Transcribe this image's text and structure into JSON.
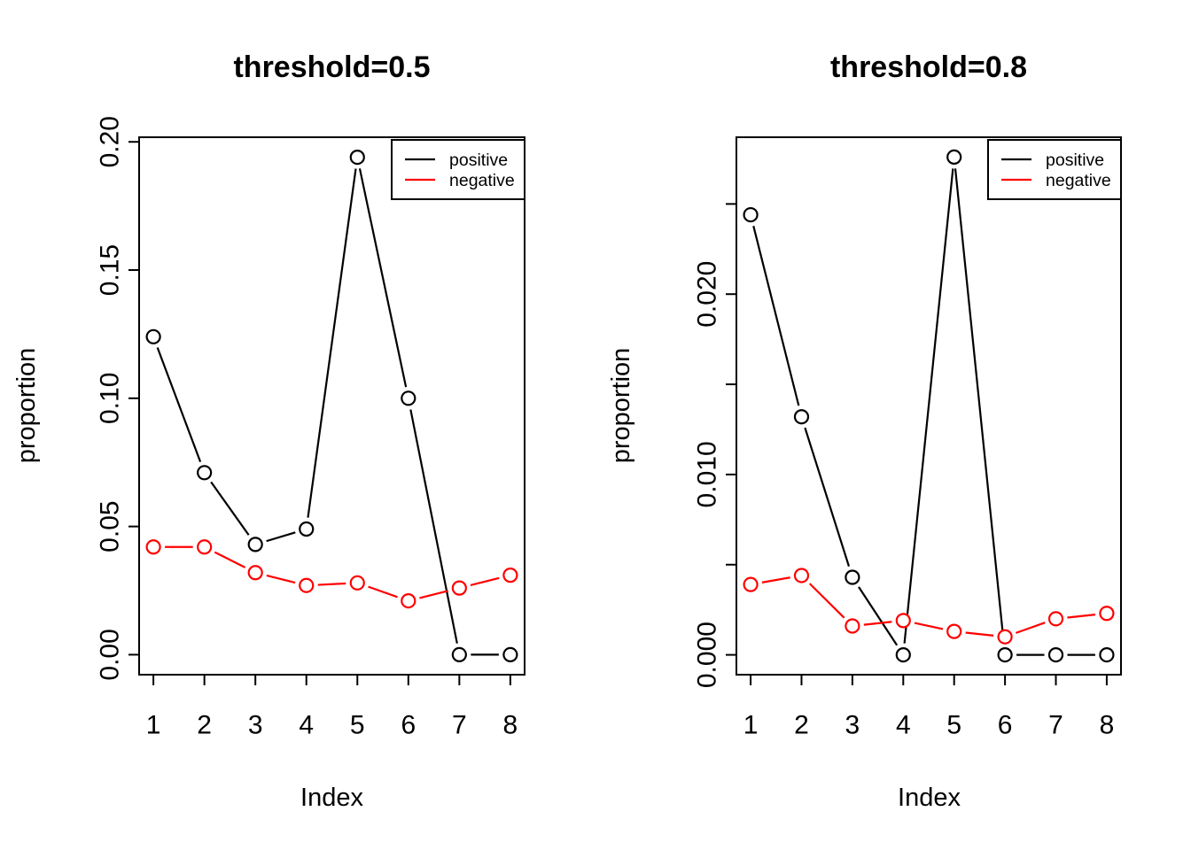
{
  "figure": {
    "background": "#ffffff",
    "series_colors": {
      "positive": "#000000",
      "negative": "#ff0000"
    }
  },
  "chart_data": [
    {
      "type": "line",
      "title": "threshold=0.5",
      "xlabel": "Index",
      "ylabel": "proportion",
      "marker": "open-circle",
      "grid": false,
      "legend_position": "topright",
      "x": [
        1,
        2,
        3,
        4,
        5,
        6,
        7,
        8
      ],
      "series": [
        {
          "name": "positive",
          "color": "#000000",
          "values": [
            0.124,
            0.071,
            0.043,
            0.049,
            0.194,
            0.1,
            0.0,
            0.0
          ]
        },
        {
          "name": "negative",
          "color": "#ff0000",
          "values": [
            0.042,
            0.042,
            0.032,
            0.027,
            0.028,
            0.021,
            0.026,
            0.031
          ]
        }
      ],
      "xlim": [
        0.72,
        8.28
      ],
      "ylim": [
        -0.0078,
        0.2018
      ],
      "xticks": {
        "values": [
          1,
          2,
          3,
          4,
          5,
          6,
          7,
          8
        ],
        "labels": [
          "1",
          "2",
          "3",
          "4",
          "5",
          "6",
          "7",
          "8"
        ]
      },
      "yticks": {
        "values": [
          0.0,
          0.05,
          0.1,
          0.15,
          0.2
        ],
        "labels": [
          "0.00",
          "0.05",
          "0.10",
          "0.15",
          "0.20"
        ]
      },
      "legend": [
        "positive",
        "negative"
      ]
    },
    {
      "type": "line",
      "title": "threshold=0.8",
      "xlabel": "Index",
      "ylabel": "proportion",
      "marker": "open-circle",
      "grid": false,
      "legend_position": "topright",
      "x": [
        1,
        2,
        3,
        4,
        5,
        6,
        7,
        8
      ],
      "series": [
        {
          "name": "positive",
          "color": "#000000",
          "values": [
            0.0244,
            0.0132,
            0.0043,
            0.0,
            0.0276,
            0.0,
            0.0,
            0.0
          ]
        },
        {
          "name": "negative",
          "color": "#ff0000",
          "values": [
            0.0039,
            0.0044,
            0.0016,
            0.0019,
            0.0013,
            0.001,
            0.002,
            0.0023
          ]
        }
      ],
      "xlim": [
        0.72,
        8.28
      ],
      "ylim": [
        -0.0011,
        0.0287
      ],
      "xticks": {
        "values": [
          1,
          2,
          3,
          4,
          5,
          6,
          7,
          8
        ],
        "labels": [
          "1",
          "2",
          "3",
          "4",
          "5",
          "6",
          "7",
          "8"
        ]
      },
      "yticks": {
        "values": [
          0.0,
          0.005,
          0.01,
          0.015,
          0.02,
          0.025
        ],
        "labels": [
          "0.000",
          "",
          "0.010",
          "",
          "0.020",
          ""
        ]
      },
      "legend": [
        "positive",
        "negative"
      ]
    }
  ]
}
